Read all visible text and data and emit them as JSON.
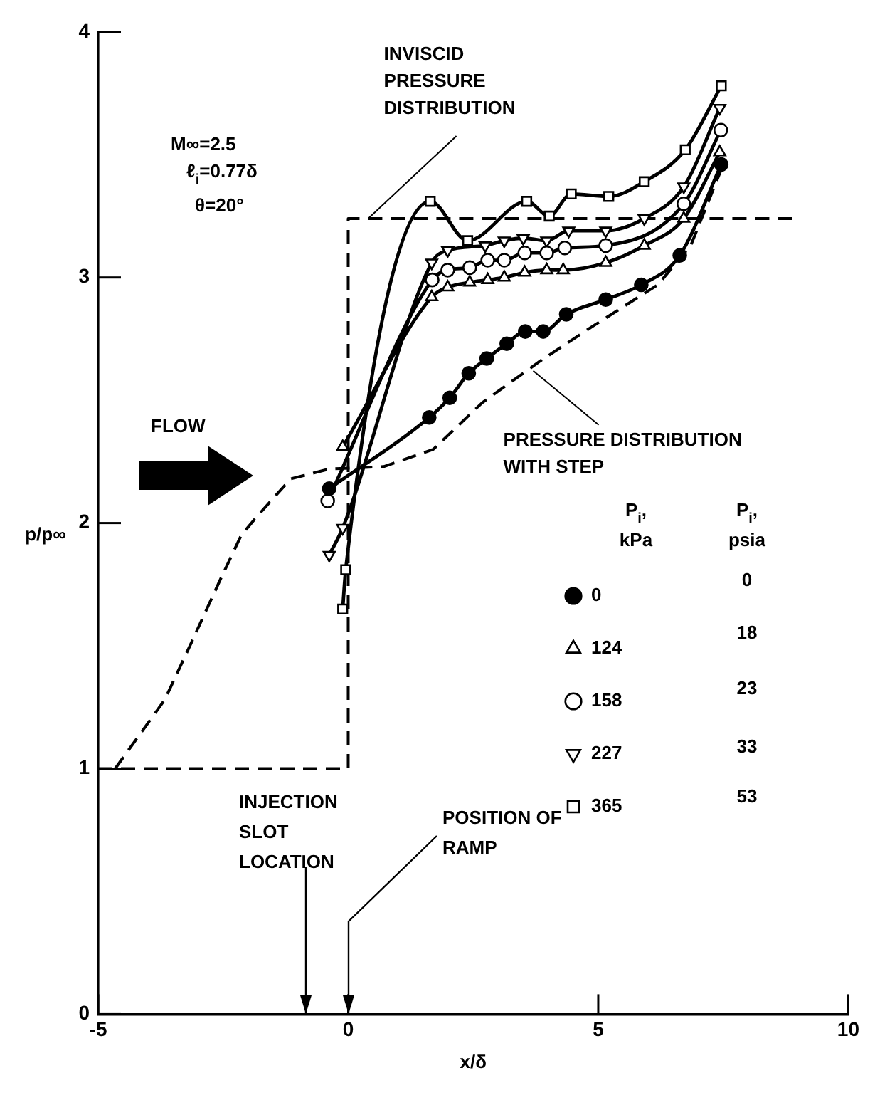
{
  "chart_data": {
    "type": "line",
    "xlabel": "x/δ",
    "ylabel": "p/p∞",
    "xlim": [
      -5,
      10
    ],
    "xticks": [
      -5,
      0,
      5,
      10
    ],
    "ylim": [
      0,
      4
    ],
    "yticks": [
      0,
      1,
      2,
      3,
      4
    ],
    "legend": "right",
    "legend_title": "P$_{i}$, kPa",
    "series": [
      {
        "name": "0",
        "color": "#000000",
        "marker": "circle",
        "x": [
          -0.38,
          1.62,
          2.03,
          2.41,
          2.77,
          3.17,
          3.54,
          3.9,
          4.36,
          5.15,
          5.86,
          6.63,
          7.46
        ],
        "values": [
          2.14,
          2.43,
          2.51,
          2.61,
          2.67,
          2.73,
          2.78,
          2.78,
          2.85,
          2.91,
          2.97,
          3.09,
          3.46
        ]
      },
      {
        "name": "124",
        "color": "#000000",
        "marker": "triangle",
        "x": [
          -0.11,
          1.67,
          1.99,
          2.43,
          2.79,
          3.12,
          3.53,
          3.97,
          4.3,
          5.15,
          5.92,
          6.71,
          7.43
        ],
        "values": [
          2.31,
          2.92,
          2.96,
          2.98,
          2.99,
          3.0,
          3.02,
          3.03,
          3.03,
          3.06,
          3.13,
          3.24,
          3.51
        ]
      },
      {
        "name": "158",
        "color": "#000000",
        "marker": "circle-open",
        "x": [
          -0.41,
          1.68,
          1.99,
          2.43,
          2.79,
          3.12,
          3.53,
          3.97,
          4.33,
          5.15,
          6.71,
          7.45
        ],
        "values": [
          2.09,
          2.99,
          3.03,
          3.04,
          3.07,
          3.07,
          3.1,
          3.1,
          3.12,
          3.13,
          3.3,
          3.6
        ]
      },
      {
        "name": "227",
        "color": "#000000",
        "marker": "triangle-down",
        "x": [
          -0.38,
          -0.11,
          1.67,
          1.99,
          2.74,
          3.12,
          3.5,
          3.97,
          4.41,
          5.15,
          5.92,
          6.71,
          7.43
        ],
        "values": [
          1.87,
          1.98,
          3.06,
          3.11,
          3.13,
          3.15,
          3.16,
          3.15,
          3.19,
          3.19,
          3.24,
          3.37,
          3.69
        ]
      },
      {
        "name": "365",
        "color": "#000000",
        "marker": "square",
        "x": [
          -0.11,
          -0.05,
          1.64,
          2.39,
          3.57,
          4.02,
          4.46,
          5.21,
          5.92,
          6.74,
          7.46
        ],
        "values": [
          1.65,
          1.81,
          3.31,
          3.15,
          3.31,
          3.25,
          3.34,
          3.33,
          3.39,
          3.52,
          3.78
        ]
      },
      {
        "color": "#000000",
        "marker": "none",
        "line_style": "dashed",
        "x": [
          -5,
          0,
          0,
          8.9
        ],
        "values": [
          1,
          1,
          3.24,
          3.24
        ]
      },
      {
        "color": "#000000",
        "marker": "none",
        "line_style": "dashed",
        "x": [
          -4.66,
          -3.67,
          -3.12,
          -2.58,
          -2.14,
          -1.81,
          -1.15,
          -0.38,
          0.71,
          1.7,
          2.68,
          3.84,
          4.88,
          6.19,
          6.85,
          7.46
        ],
        "values": [
          1.0,
          1.28,
          1.52,
          1.76,
          1.95,
          2.03,
          2.18,
          2.22,
          2.23,
          2.3,
          2.49,
          2.66,
          2.8,
          2.97,
          3.13,
          3.44
        ]
      }
    ],
    "annotations": [
      "M∞=2.5",
      "ℓ$_{i}$=0.77δ",
      "θ=20°",
      "FLOW",
      {
        "text": "INVISCID PRESSURE DISTRIBUTION",
        "x": 0.4,
        "y": 3.24
      },
      {
        "text": "PRESSURE DISTRIBUTION WITH STEP",
        "x": 3.7,
        "y": 2.62
      },
      "INJECTION SLOT LOCATION",
      "POSITION OF RAMP",
      "P$_{i}$, psia",
      "0",
      "18",
      "23",
      "33",
      "53"
    ]
  }
}
